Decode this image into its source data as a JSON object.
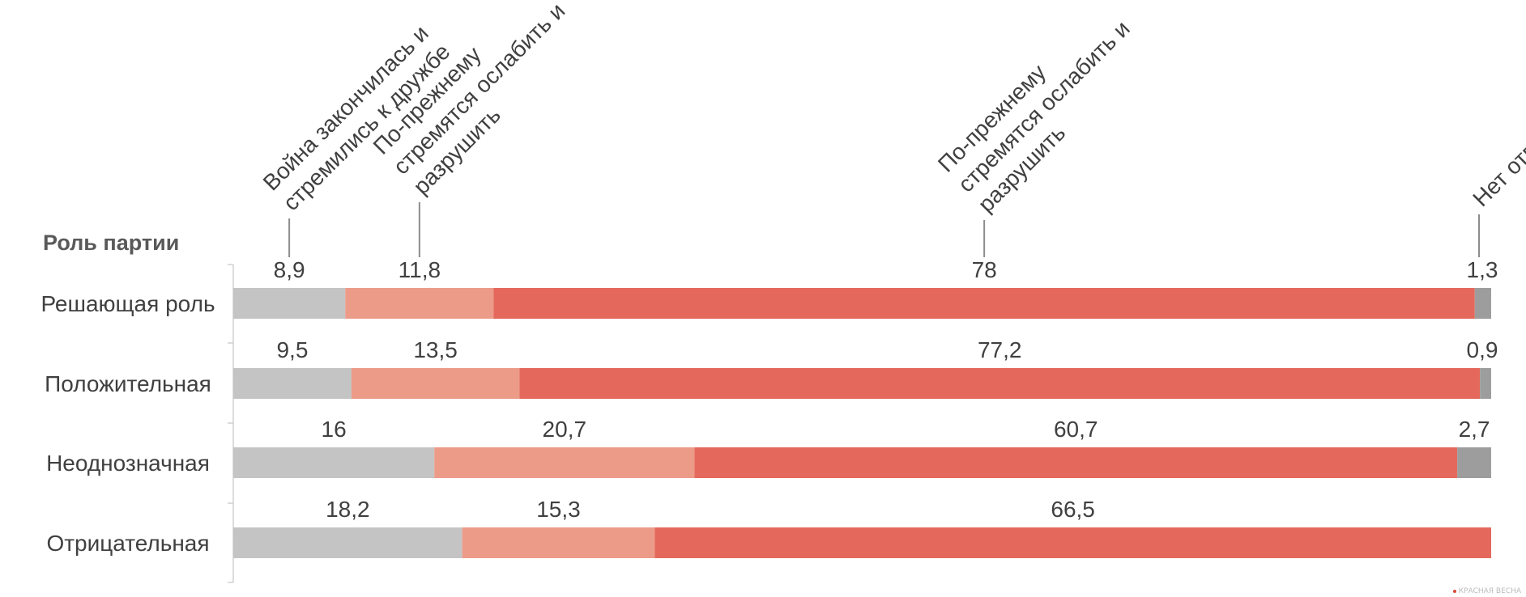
{
  "chart_data": {
    "type": "bar",
    "orientation": "horizontal",
    "stacked": true,
    "axis_title": "Роль партии",
    "categories": [
      "Решающая роль",
      "Положительная",
      "Неоднозначная",
      "Отрицательная"
    ],
    "series": [
      {
        "name": "Война закончилась и стремились к дружбе",
        "label_lines": [
          "Война закончилась и",
          "стремились к дружбе"
        ],
        "color": "#c4c4c4",
        "values": [
          8.9,
          9.5,
          16,
          18.2
        ],
        "value_labels": [
          "8,9",
          "9,5",
          "16",
          "18,2"
        ]
      },
      {
        "name": "По-прежнему стремятся ослабить и разрушить",
        "label_lines": [
          "По-прежнему",
          "стремятся ослабить и",
          "разрушить"
        ],
        "color": "#ec9b89",
        "values": [
          11.8,
          13.5,
          20.7,
          15.3
        ],
        "value_labels": [
          "11,8",
          "13,5",
          "20,7",
          "15,3"
        ]
      },
      {
        "name": "По-прежнему стремятся ослабить и разрушить",
        "label_lines": [
          "По-прежнему",
          "стремятся ослабить и",
          "разрушить"
        ],
        "color": "#e4695c",
        "values": [
          78,
          77.2,
          60.7,
          66.5
        ],
        "value_labels": [
          "78",
          "77,2",
          "60,7",
          "66,5"
        ]
      },
      {
        "name": "Нет ответа",
        "label_lines": [
          "Нет ответа"
        ],
        "color": "#9d9d9d",
        "values": [
          1.3,
          0.9,
          2.7,
          0
        ],
        "value_labels": [
          "1,3",
          "0,9",
          "2,7",
          ""
        ]
      }
    ],
    "legend": "rotated labels above first bar with leader lines",
    "grid": false
  },
  "watermark": "КРАСНАЯ ВЕСНА"
}
